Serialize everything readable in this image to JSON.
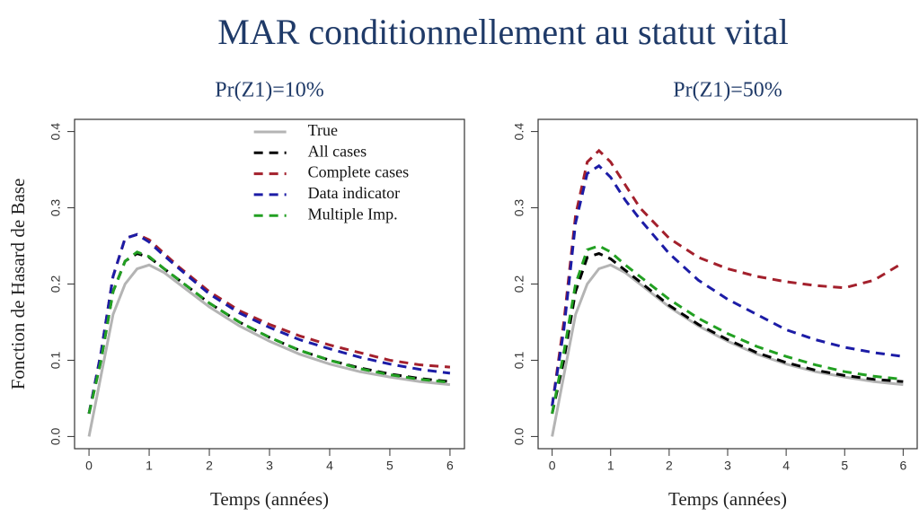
{
  "title": "MAR conditionnellement au statut vital",
  "chart_data": [
    {
      "type": "line",
      "title": "Pr(Z1)=10%",
      "xlabel": "Temps (années)",
      "ylabel": "Fonction de Hasard de Base",
      "x": [
        0,
        0.2,
        0.4,
        0.6,
        0.8,
        1,
        1.25,
        1.5,
        2,
        2.5,
        3,
        3.5,
        4,
        4.5,
        5,
        5.5,
        6
      ],
      "xlim": [
        -0.24,
        6.24
      ],
      "xticks": [
        0,
        1,
        2,
        3,
        4,
        5,
        6
      ],
      "ylim": [
        -0.016,
        0.416
      ],
      "yticks": [
        {
          "value": 0,
          "label": "0.0"
        },
        0.1,
        0.2,
        0.3,
        0.4
      ],
      "legend": "top",
      "series": [
        {
          "name": "True",
          "color": "#b4b4b4",
          "line_style": "solid",
          "values": [
            0,
            0.08,
            0.16,
            0.2,
            0.22,
            0.225,
            0.215,
            0.2,
            0.17,
            0.145,
            0.125,
            0.108,
            0.095,
            0.085,
            0.078,
            0.072,
            0.068
          ]
        },
        {
          "name": "All cases",
          "color": "#000000",
          "line_style": "dashed",
          "values": [
            0.03,
            0.1,
            0.19,
            0.23,
            0.24,
            0.235,
            0.22,
            0.205,
            0.175,
            0.15,
            0.13,
            0.113,
            0.1,
            0.09,
            0.082,
            0.076,
            0.072
          ]
        },
        {
          "name": "Complete cases",
          "color": "#a3202c",
          "line_style": "dashed",
          "values": [
            0.03,
            0.11,
            0.21,
            0.26,
            0.265,
            0.258,
            0.24,
            0.222,
            0.19,
            0.165,
            0.147,
            0.132,
            0.12,
            0.11,
            0.1,
            0.094,
            0.091
          ]
        },
        {
          "name": "Data indicator",
          "color": "#1c1ca6",
          "line_style": "dashed",
          "values": [
            0.03,
            0.11,
            0.21,
            0.26,
            0.265,
            0.255,
            0.237,
            0.22,
            0.187,
            0.162,
            0.143,
            0.127,
            0.115,
            0.104,
            0.095,
            0.088,
            0.083
          ]
        },
        {
          "name": "Multiple Imp.",
          "color": "#22a022",
          "line_style": "dashed",
          "values": [
            0.03,
            0.1,
            0.19,
            0.23,
            0.242,
            0.236,
            0.22,
            0.205,
            0.175,
            0.15,
            0.13,
            0.113,
            0.1,
            0.089,
            0.081,
            0.075,
            0.071
          ]
        }
      ]
    },
    {
      "type": "line",
      "title": "Pr(Z1)=50%",
      "xlabel": "Temps (années)",
      "x": [
        0,
        0.2,
        0.4,
        0.6,
        0.8,
        1,
        1.25,
        1.5,
        2,
        2.5,
        3,
        3.5,
        4,
        4.5,
        5,
        5.5,
        6
      ],
      "xlim": [
        -0.24,
        6.24
      ],
      "xticks": [
        0,
        1,
        2,
        3,
        4,
        5,
        6
      ],
      "ylim": [
        -0.016,
        0.416
      ],
      "yticks": [
        {
          "value": 0,
          "label": "0.0"
        },
        0.1,
        0.2,
        0.3,
        0.4
      ],
      "series": [
        {
          "color": "#b4b4b4",
          "line_style": "solid",
          "values": [
            0,
            0.08,
            0.16,
            0.2,
            0.22,
            0.225,
            0.215,
            0.2,
            0.17,
            0.145,
            0.125,
            0.108,
            0.095,
            0.085,
            0.078,
            0.072,
            0.068
          ]
        },
        {
          "color": "#000000",
          "line_style": "dashed",
          "values": [
            0.03,
            0.1,
            0.19,
            0.235,
            0.24,
            0.233,
            0.218,
            0.203,
            0.172,
            0.147,
            0.127,
            0.11,
            0.097,
            0.087,
            0.08,
            0.075,
            0.072
          ]
        },
        {
          "color": "#a3202c",
          "line_style": "dashed",
          "values": [
            0.04,
            0.15,
            0.29,
            0.36,
            0.375,
            0.36,
            0.33,
            0.3,
            0.26,
            0.235,
            0.22,
            0.21,
            0.203,
            0.198,
            0.195,
            0.205,
            0.228
          ]
        },
        {
          "color": "#1c1ca6",
          "line_style": "dashed",
          "values": [
            0.04,
            0.14,
            0.28,
            0.345,
            0.355,
            0.34,
            0.31,
            0.285,
            0.24,
            0.205,
            0.18,
            0.16,
            0.14,
            0.127,
            0.117,
            0.11,
            0.105
          ]
        },
        {
          "color": "#22a022",
          "line_style": "dashed",
          "values": [
            0.03,
            0.11,
            0.2,
            0.245,
            0.25,
            0.242,
            0.225,
            0.21,
            0.18,
            0.155,
            0.135,
            0.118,
            0.105,
            0.094,
            0.085,
            0.079,
            0.075
          ]
        }
      ]
    }
  ]
}
